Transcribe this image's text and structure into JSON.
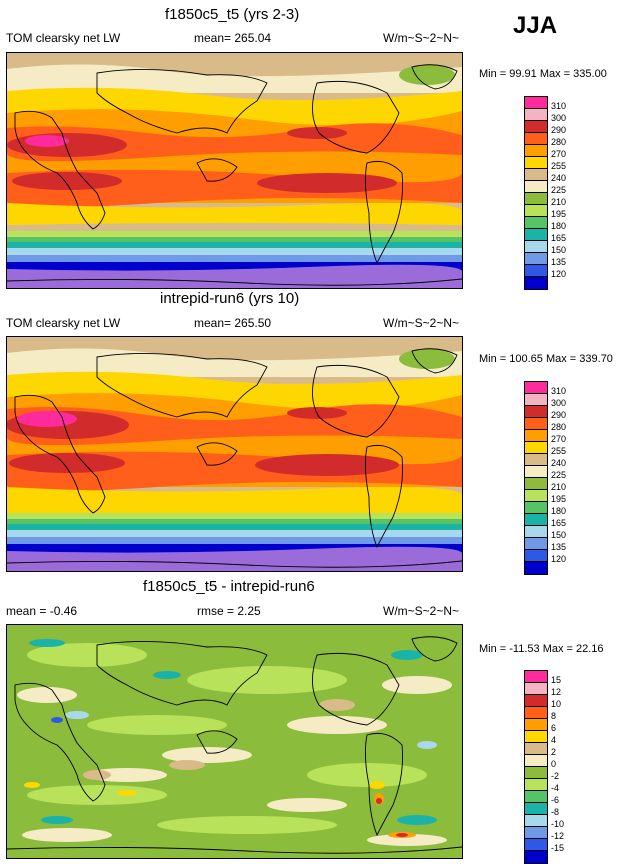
{
  "season": "JJA",
  "units": "W/m~S~2~N~",
  "field": "TOM clearsky net LW",
  "colors": {
    "full": [
      "#9b6cd9",
      "#0000cc",
      "#2e58e6",
      "#6f9ae8",
      "#a8d8ec",
      "#1ab3a8",
      "#56c466",
      "#b7e25a",
      "#8cbc3c",
      "#f5ecc6",
      "#d9bb8a",
      "#ffd700",
      "#ff9e00",
      "#ff5f1a",
      "#d22b2b",
      "#f4b3c2",
      "#ff2a9b"
    ],
    "diff": [
      "#9b6cd9",
      "#0000cc",
      "#2e58e6",
      "#6f9ae8",
      "#a8d8ec",
      "#1ab3a8",
      "#56c466",
      "#b7e25a",
      "#8cbc3c",
      "#f5ecc6",
      "#d9bb8a",
      "#ffd700",
      "#ff9e00",
      "#ff5f1a",
      "#d22b2b",
      "#f4b3c2",
      "#ff2a9b"
    ]
  },
  "panels": [
    {
      "title": "f1850c5_t5 (yrs 2-3)",
      "left_text": "TOM clearsky net LW",
      "mean_text": "mean= 265.04",
      "units_text": "W/m~S~2~N~",
      "minmax_text": "Min = 99.91 Max = 335.00",
      "legend_labels": [
        "310",
        "300",
        "290",
        "280",
        "270",
        "255",
        "240",
        "225",
        "210",
        "195",
        "180",
        "165",
        "150",
        "135",
        "120"
      ]
    },
    {
      "title": "intrepid-run6 (yrs 10)",
      "left_text": "TOM clearsky net LW",
      "mean_text": "mean= 265.50",
      "units_text": "W/m~S~2~N~",
      "minmax_text": "Min = 100.65 Max = 339.70",
      "legend_labels": [
        "310",
        "300",
        "290",
        "280",
        "270",
        "255",
        "240",
        "225",
        "210",
        "195",
        "180",
        "165",
        "150",
        "135",
        "120"
      ]
    },
    {
      "title": "f1850c5_t5 - intrepid-run6",
      "left_text": "mean = -0.46",
      "mean_text": "rmse = 2.25",
      "units_text": "W/m~S~2~N~",
      "minmax_text": "Min = -11.53 Max = 22.16",
      "legend_labels": [
        "15",
        "12",
        "10",
        "8",
        "6",
        "4",
        "2",
        "0",
        "-2",
        "-4",
        "-6",
        "-8",
        "-10",
        "-12",
        "-15"
      ]
    }
  ],
  "chart_data": [
    {
      "type": "heatmap",
      "title": "f1850c5_t5 (yrs 2-3)",
      "variable": "TOM clearsky net LW",
      "mean": 265.04,
      "min": 99.91,
      "max": 335.0,
      "contour_levels": [
        120,
        135,
        150,
        165,
        180,
        195,
        210,
        225,
        240,
        255,
        270,
        280,
        290,
        300,
        310
      ],
      "units": "W/m2",
      "projection": "global cylindrical, 0 to 360 lon"
    },
    {
      "type": "heatmap",
      "title": "intrepid-run6 (yrs 10)",
      "variable": "TOM clearsky net LW",
      "mean": 265.5,
      "min": 100.65,
      "max": 339.7,
      "contour_levels": [
        120,
        135,
        150,
        165,
        180,
        195,
        210,
        225,
        240,
        255,
        270,
        280,
        290,
        300,
        310
      ],
      "units": "W/m2"
    },
    {
      "type": "heatmap",
      "title": "f1850c5_t5 - intrepid-run6",
      "variable": "TOM clearsky net LW difference",
      "mean": -0.46,
      "rmse": 2.25,
      "min": -11.53,
      "max": 22.16,
      "contour_levels": [
        -15,
        -12,
        -10,
        -8,
        -6,
        -4,
        -2,
        0,
        2,
        4,
        6,
        8,
        10,
        12,
        15
      ],
      "units": "W/m2"
    }
  ]
}
